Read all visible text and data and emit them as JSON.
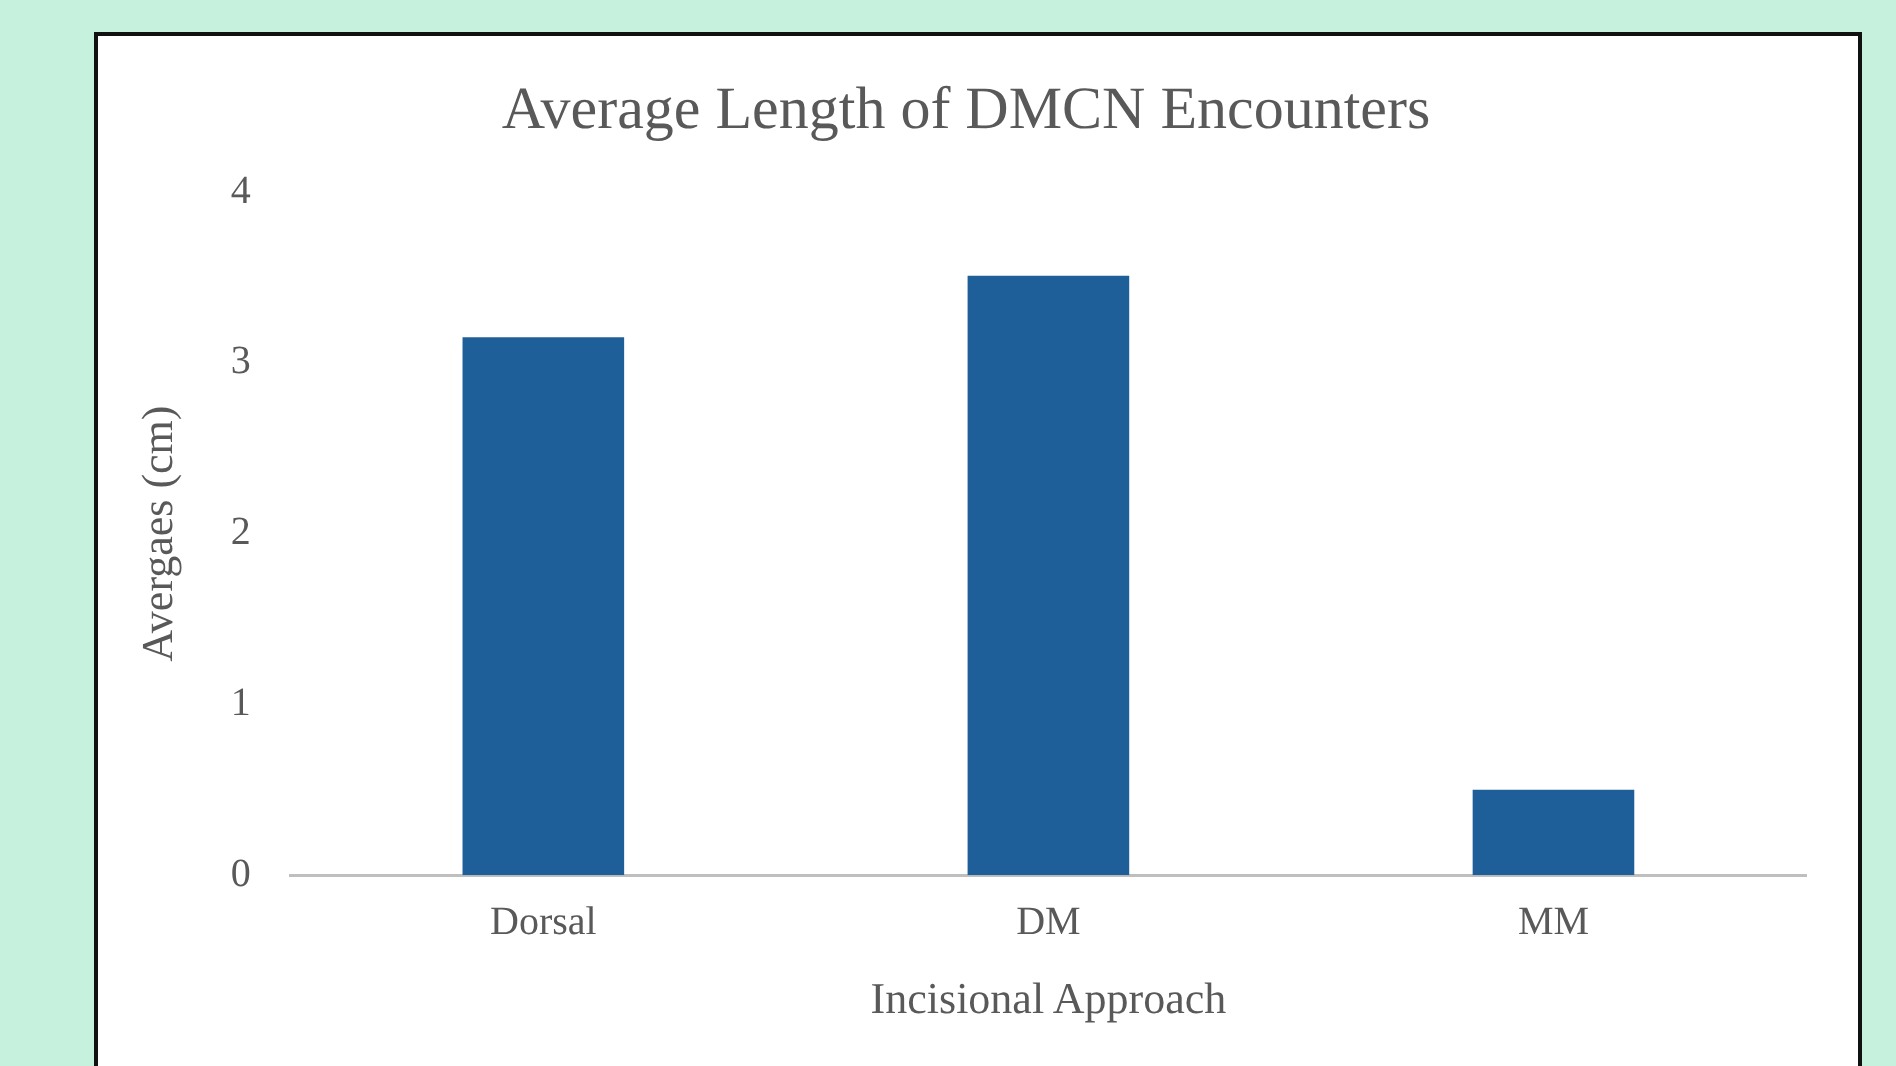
{
  "chart_data": {
    "type": "bar",
    "title": "Average Length of DMCN Encounters",
    "xlabel": "Incisional Approach",
    "ylabel": "Avergaes (cm)",
    "categories": [
      "Dorsal",
      "DM",
      "MM"
    ],
    "values": [
      3.15,
      3.51,
      0.5
    ],
    "color": "#1f5f99",
    "ylim": [
      0,
      4
    ],
    "yticks": [
      0,
      1,
      2,
      3,
      4
    ],
    "grid": false,
    "legend": false
  }
}
